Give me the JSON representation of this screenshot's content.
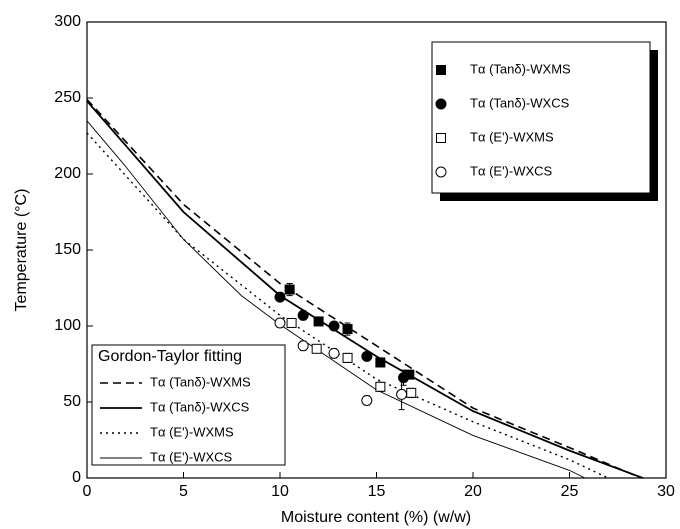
{
  "chart_data": {
    "type": "scatter",
    "xlabel": "Moisture content (%) (w/w)",
    "ylabel": "Temperature (°C)",
    "xlim": [
      0,
      30
    ],
    "xticks": [
      0,
      5,
      10,
      15,
      20,
      25,
      30
    ],
    "ylim": [
      0,
      300
    ],
    "yticks": [
      0,
      50,
      100,
      150,
      200,
      250,
      300
    ],
    "series": [
      {
        "name": "Tα (Tanδ)-WXMS",
        "marker": "square",
        "filled": true,
        "color": "#000000",
        "x": [
          10.5,
          12,
          13.5,
          15.2,
          16.7
        ],
        "values": [
          124,
          103,
          98,
          76,
          68
        ],
        "errors": [
          4,
          2,
          4,
          3,
          2
        ]
      },
      {
        "name": "Tα (Tanδ)-WXCS",
        "marker": "circle",
        "filled": true,
        "color": "#000000",
        "x": [
          10,
          11.2,
          12.8,
          14.5,
          16.4
        ],
        "values": [
          119,
          107,
          100,
          80,
          66
        ],
        "errors": [
          2,
          3,
          2,
          2,
          5
        ]
      },
      {
        "name": "Tα (E')-WXMS",
        "marker": "square",
        "filled": false,
        "color": "#000000",
        "x": [
          10.6,
          11.9,
          13.5,
          15.2,
          16.8
        ],
        "values": [
          102,
          85,
          79,
          60,
          56
        ],
        "errors": [
          2,
          2,
          3,
          3,
          3
        ]
      },
      {
        "name": "Tα (E')-WXCS",
        "marker": "circle",
        "filled": false,
        "color": "#000000",
        "x": [
          10,
          11.2,
          12.8,
          14.5,
          16.3
        ],
        "values": [
          102,
          87,
          82,
          51,
          55
        ],
        "errors": [
          2,
          3,
          3,
          3,
          10
        ]
      }
    ],
    "fit_legend_title": "Gordon-Taylor fitting",
    "fits": [
      {
        "name": "Tα (Tanδ)-WXMS",
        "dash": "8,5",
        "width": 1.6,
        "color": "#000000",
        "x": [
          0,
          5,
          10,
          15,
          20,
          25,
          28.7
        ],
        "values": [
          249,
          180,
          128,
          87,
          46,
          20,
          0
        ]
      },
      {
        "name": "Tα (Tanδ)-WXCS",
        "dash": "none",
        "width": 1.8,
        "color": "#000000",
        "x": [
          0,
          5,
          8,
          10,
          15,
          20,
          25,
          28.8
        ],
        "values": [
          248,
          175,
          142,
          120,
          80,
          44,
          18,
          0
        ]
      },
      {
        "name": "Tα (E')-WXMS",
        "dash": "2,4",
        "width": 1.4,
        "color": "#000000",
        "x": [
          0,
          5,
          10,
          15,
          20,
          25,
          27
        ],
        "values": [
          227,
          157,
          107,
          65,
          37,
          12,
          0
        ]
      },
      {
        "name": "Tα (E')-WXCS",
        "dash": "none",
        "width": 0.9,
        "color": "#000000",
        "x": [
          0,
          2,
          5,
          8,
          10,
          15,
          20,
          25,
          25.8
        ],
        "values": [
          235,
          205,
          157,
          120,
          101,
          58,
          28,
          5,
          0
        ]
      }
    ]
  }
}
